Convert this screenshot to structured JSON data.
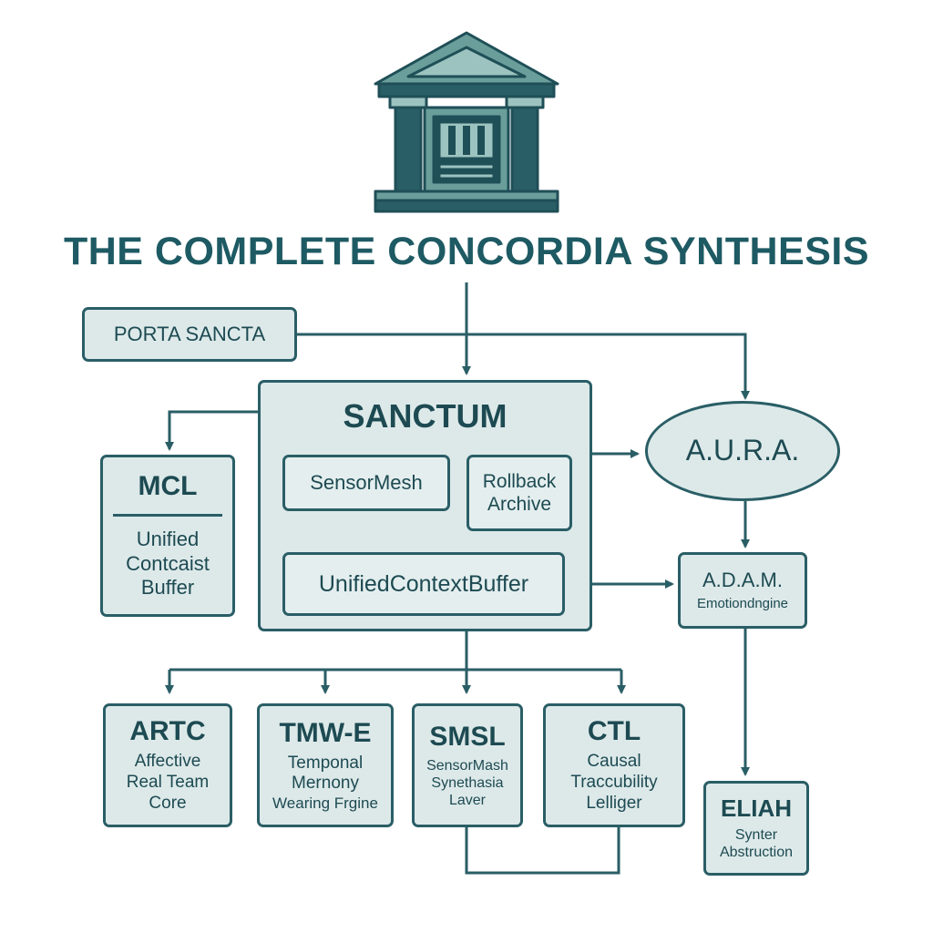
{
  "title": "THE COMPLETE CONCORDIA SYNTHESIS",
  "logo": {
    "icon": "classical-building-icon"
  },
  "colors": {
    "primary": "#2a5e66",
    "fill": "#dde9e9",
    "title": "#1e5a63"
  },
  "nodes": {
    "porta_sancta": {
      "label": "PORTA SANCTA"
    },
    "sanctum": {
      "label": "SANCTUM",
      "sensormesh": "SensorMesh",
      "rollback": [
        "Rollback",
        "Archive"
      ],
      "buffer": "UnifiedContextBuffer"
    },
    "mcl": {
      "label": "MCL",
      "lines": [
        "Unified",
        "Contcaist",
        "Buffer"
      ]
    },
    "aura": {
      "label": "A.U.R.A."
    },
    "adam": {
      "label": "A.D.A.M.",
      "sub": "Emotiondngine"
    },
    "artc": {
      "label": "ARTC",
      "lines": [
        "Affective",
        "Real Team",
        "Core"
      ]
    },
    "tmwe": {
      "label": "TMW-E",
      "lines": [
        "Temponal",
        "Mernony",
        "Wearing Frgine"
      ]
    },
    "smsl": {
      "label": "SMSL",
      "lines": [
        "SensorMash",
        "Synethasia",
        "Laver"
      ]
    },
    "ctl": {
      "label": "CTL",
      "lines": [
        "Causal",
        "Traccubility",
        "Lelliger"
      ]
    },
    "eliah": {
      "label": "ELIAH",
      "lines": [
        "Synter",
        "Abstruction"
      ]
    }
  }
}
